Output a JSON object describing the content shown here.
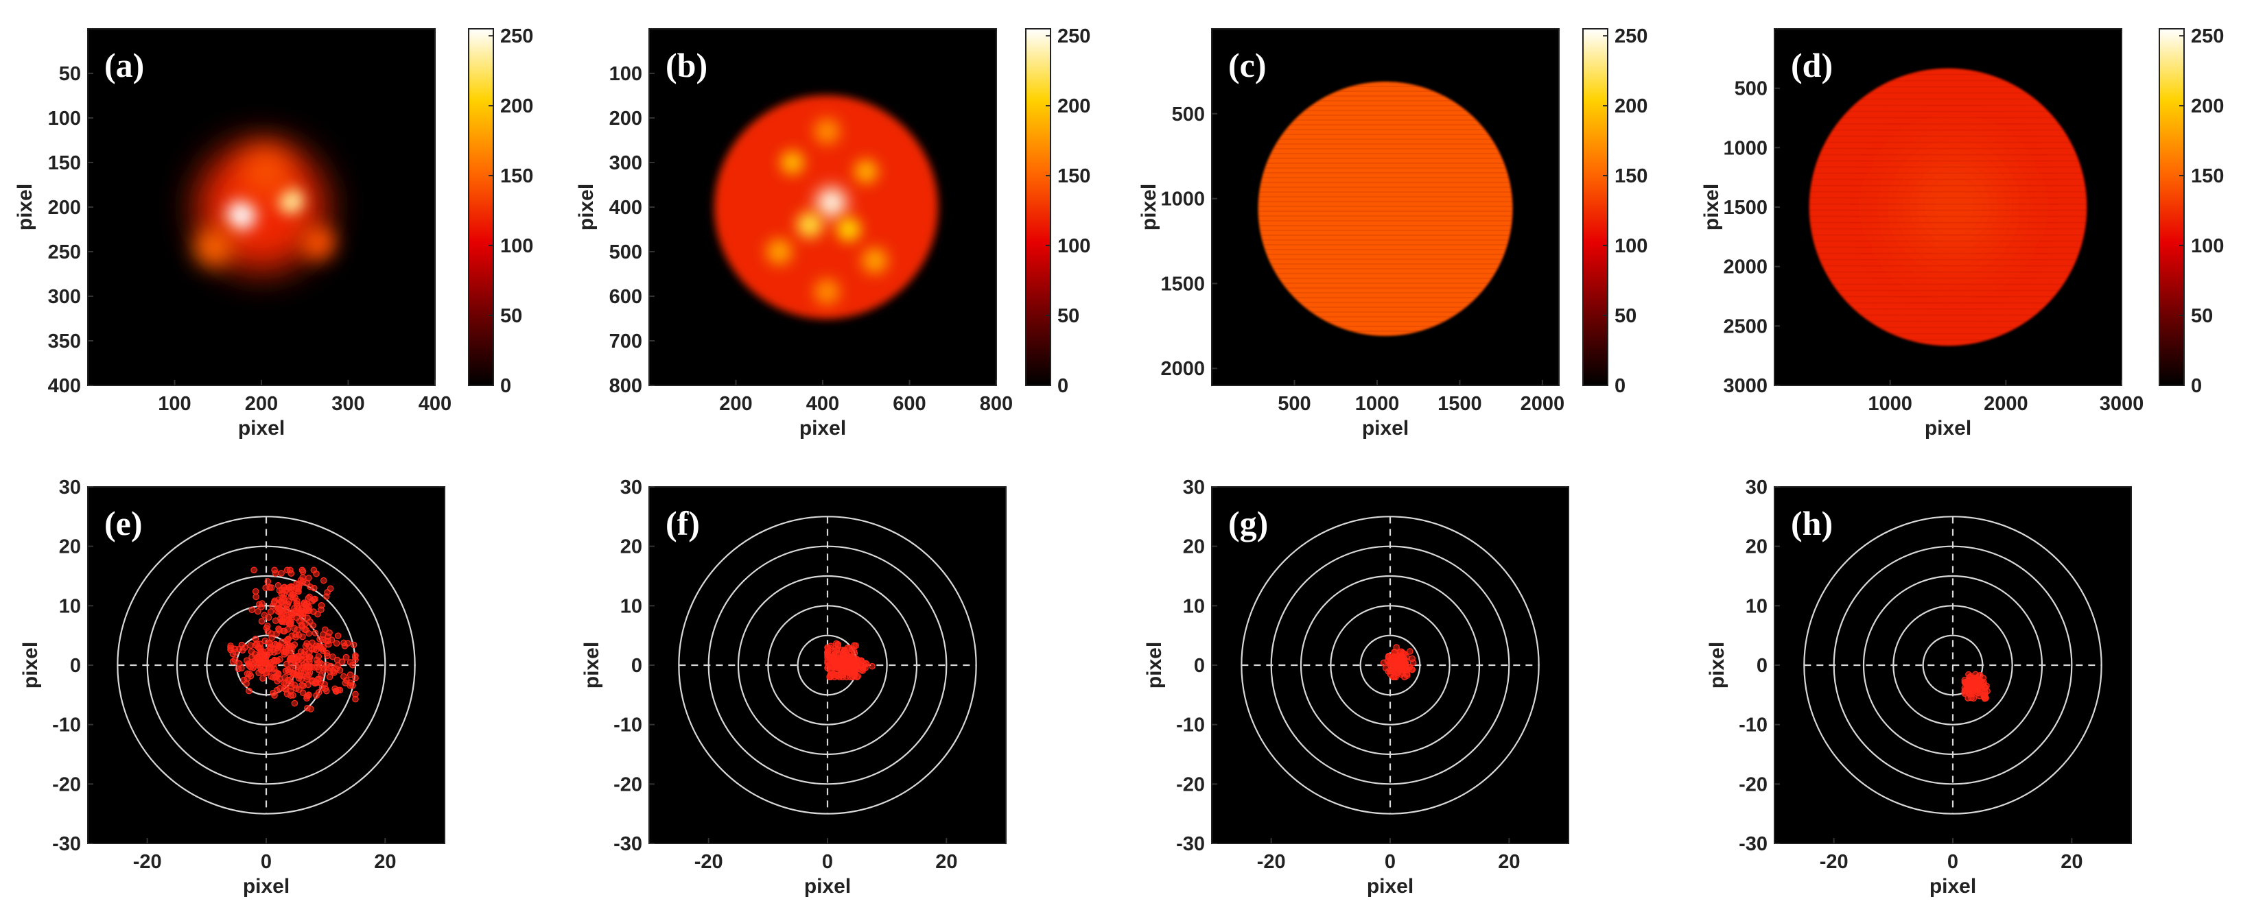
{
  "figure": {
    "colormap_name": "hot",
    "colormap_stops": [
      "#000000",
      "#6e0000",
      "#e60000",
      "#ff6a00",
      "#ffd200",
      "#ffffff"
    ],
    "background_color": "#000000",
    "point_color": "#ff2a1a",
    "ring_color": "#d8d8d8"
  },
  "chart_data": [
    {
      "id": "a",
      "type": "heatmap",
      "panel_label": "(a)",
      "title": "",
      "xlabel": "pixel",
      "ylabel": "pixel",
      "xlim": [
        0,
        400
      ],
      "ylim": [
        0,
        400
      ],
      "xticks": [
        100,
        200,
        300,
        400
      ],
      "yticks": [
        50,
        100,
        150,
        200,
        250,
        300,
        350,
        400
      ],
      "colorbar": {
        "range": [
          0,
          255
        ],
        "ticks": [
          0,
          50,
          100,
          150,
          200,
          250
        ]
      },
      "spot": {
        "center": [
          200,
          200
        ],
        "radius": 75,
        "base_intensity": 120
      },
      "hotspots": [
        {
          "center": [
            177,
            209
          ],
          "radius": 17,
          "intensity": 255
        },
        {
          "center": [
            234,
            193
          ],
          "radius": 15,
          "intensity": 235
        },
        {
          "center": [
            145,
            245
          ],
          "radius": 22,
          "intensity": 150
        },
        {
          "center": [
            265,
            240
          ],
          "radius": 20,
          "intensity": 140
        },
        {
          "center": [
            205,
            160
          ],
          "radius": 28,
          "intensity": 140
        }
      ]
    },
    {
      "id": "b",
      "type": "heatmap",
      "panel_label": "(b)",
      "title": "",
      "xlabel": "pixel",
      "ylabel": "pixel",
      "xlim": [
        0,
        800
      ],
      "ylim": [
        0,
        800
      ],
      "xticks": [
        200,
        400,
        600,
        800
      ],
      "yticks": [
        100,
        200,
        300,
        400,
        500,
        600,
        700,
        800
      ],
      "colorbar": {
        "range": [
          0,
          255
        ],
        "ticks": [
          0,
          50,
          100,
          150,
          200,
          250
        ]
      },
      "spot": {
        "center": [
          408,
          400
        ],
        "radius": 258,
        "base_intensity": 120
      },
      "hotspots": [
        {
          "center": [
            420,
            390
          ],
          "radius": 35,
          "intensity": 250
        },
        {
          "center": [
            370,
            440
          ],
          "radius": 30,
          "intensity": 215
        },
        {
          "center": [
            460,
            450
          ],
          "radius": 28,
          "intensity": 205
        },
        {
          "center": [
            330,
            300
          ],
          "radius": 28,
          "intensity": 190
        },
        {
          "center": [
            500,
            320
          ],
          "radius": 28,
          "intensity": 185
        },
        {
          "center": [
            300,
            500
          ],
          "radius": 30,
          "intensity": 180
        },
        {
          "center": [
            520,
            520
          ],
          "radius": 30,
          "intensity": 180
        },
        {
          "center": [
            410,
            230
          ],
          "radius": 30,
          "intensity": 170
        },
        {
          "center": [
            410,
            590
          ],
          "radius": 30,
          "intensity": 170
        }
      ]
    },
    {
      "id": "c",
      "type": "heatmap",
      "panel_label": "(c)",
      "title": "",
      "xlabel": "pixel",
      "ylabel": "pixel",
      "xlim": [
        0,
        2100
      ],
      "ylim": [
        0,
        2100
      ],
      "xticks": [
        500,
        1000,
        1500,
        2000
      ],
      "yticks": [
        500,
        1000,
        1500,
        2000
      ],
      "colorbar": {
        "range": [
          0,
          255
        ],
        "ticks": [
          0,
          50,
          100,
          150,
          200,
          250
        ]
      },
      "spot": {
        "center": [
          1050,
          1060
        ],
        "radius": 770,
        "base_intensity": 145
      },
      "hotspots": []
    },
    {
      "id": "d",
      "type": "heatmap",
      "panel_label": "(d)",
      "title": "",
      "xlabel": "pixel",
      "ylabel": "pixel",
      "xlim": [
        0,
        3000
      ],
      "ylim": [
        0,
        3000
      ],
      "xticks": [
        1000,
        2000,
        3000
      ],
      "yticks": [
        500,
        1000,
        1500,
        2000,
        2500,
        3000
      ],
      "colorbar": {
        "range": [
          0,
          255
        ],
        "ticks": [
          0,
          50,
          100,
          150,
          200,
          250
        ]
      },
      "spot": {
        "center": [
          1500,
          1500
        ],
        "radius": 1200,
        "base_intensity": 118
      },
      "hotspots": [
        {
          "center": [
            1550,
            1500
          ],
          "radius": 450,
          "intensity": 130
        }
      ]
    },
    {
      "id": "e",
      "type": "scatter",
      "panel_label": "(e)",
      "title": "",
      "xlabel": "pixel",
      "ylabel": "pixel",
      "xlim": [
        -30,
        30
      ],
      "ylim": [
        -30,
        30
      ],
      "xticks": [
        -20,
        0,
        20
      ],
      "yticks": [
        -30,
        -20,
        -10,
        0,
        10,
        20,
        30
      ],
      "rings": [
        5,
        10,
        15,
        20,
        25
      ],
      "clusters": [
        {
          "center": [
            4,
            5
          ],
          "spread": [
            3,
            5
          ],
          "count": 170
        },
        {
          "center": [
            8,
            0
          ],
          "spread": [
            4,
            3
          ],
          "count": 160
        },
        {
          "center": [
            -2,
            1
          ],
          "spread": [
            2.5,
            1.5
          ],
          "count": 70
        },
        {
          "center": [
            5,
            11
          ],
          "spread": [
            2,
            2.5
          ],
          "count": 80
        }
      ],
      "x_range": [
        -6,
        15
      ],
      "y_range": [
        -9,
        16
      ]
    },
    {
      "id": "f",
      "type": "scatter",
      "panel_label": "(f)",
      "title": "",
      "xlabel": "pixel",
      "ylabel": "pixel",
      "xlim": [
        -30,
        30
      ],
      "ylim": [
        -30,
        30
      ],
      "xticks": [
        -20,
        0,
        20
      ],
      "yticks": [
        -30,
        -20,
        -10,
        0,
        10,
        20,
        30
      ],
      "rings": [
        5,
        10,
        15,
        20,
        25
      ],
      "clusters": [
        {
          "center": [
            2.5,
            0.5
          ],
          "spread": [
            1.5,
            1.5
          ],
          "count": 160
        },
        {
          "center": [
            5,
            -0.5
          ],
          "spread": [
            1.2,
            0.6
          ],
          "count": 35
        }
      ],
      "x_range": [
        0,
        8
      ],
      "y_range": [
        -2,
        5
      ]
    },
    {
      "id": "g",
      "type": "scatter",
      "panel_label": "(g)",
      "title": "",
      "xlabel": "pixel",
      "ylabel": "pixel",
      "xlim": [
        -30,
        30
      ],
      "ylim": [
        -30,
        30
      ],
      "xticks": [
        -20,
        0,
        20
      ],
      "yticks": [
        -30,
        -20,
        -10,
        0,
        10,
        20,
        30
      ],
      "rings": [
        5,
        10,
        15,
        20,
        25
      ],
      "clusters": [
        {
          "center": [
            1.5,
            0.3
          ],
          "spread": [
            1,
            1.1
          ],
          "count": 110
        }
      ],
      "x_range": [
        -2,
        4
      ],
      "y_range": [
        -2,
        3
      ]
    },
    {
      "id": "h",
      "type": "scatter",
      "panel_label": "(h)",
      "title": "",
      "xlabel": "pixel",
      "ylabel": "pixel",
      "xlim": [
        -30,
        30
      ],
      "ylim": [
        -30,
        30
      ],
      "xticks": [
        -20,
        0,
        20
      ],
      "yticks": [
        -30,
        -20,
        -10,
        0,
        10,
        20,
        30
      ],
      "rings": [
        5,
        10,
        15,
        20,
        25
      ],
      "clusters": [
        {
          "center": [
            3.5,
            -3.5
          ],
          "spread": [
            0.9,
            0.9
          ],
          "count": 90
        },
        {
          "center": [
            5.5,
            -5
          ],
          "spread": [
            0.5,
            0.5
          ],
          "count": 8
        }
      ],
      "x_range": [
        2,
        7
      ],
      "y_range": [
        -6,
        -1
      ]
    }
  ]
}
